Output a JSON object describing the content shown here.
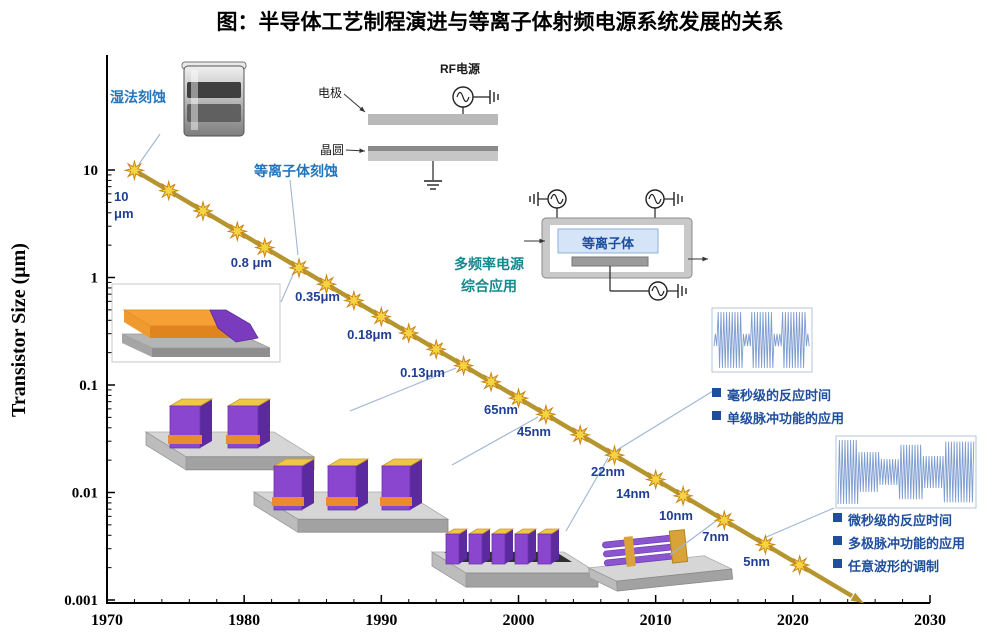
{
  "title": "图：半导体工艺制程演进与等离子体射频电源系统发展的关系",
  "chart_data": {
    "type": "line",
    "title": "半导体工艺制程演进与等离子体射频电源系统发展的关系",
    "xlabel": "",
    "ylabel": "Transistor Size (μm)",
    "x_ticks": [
      "1970",
      "1980",
      "1990",
      "2000",
      "2010",
      "2020",
      "2030"
    ],
    "y_ticks": [
      "10",
      "1",
      "0.1",
      "0.01",
      "0.001"
    ],
    "y_scale": "log",
    "xlim": [
      1970,
      2030
    ],
    "ylim": [
      0.001,
      10
    ],
    "grid": false,
    "legend": "none",
    "series": [
      {
        "name": "transistor-size-roadmap",
        "marker": "star",
        "marker_years": [
          1972,
          1974.5,
          1977,
          1979.5,
          1981.5,
          1984,
          1986,
          1988,
          1990,
          1992,
          1994,
          1996,
          1998,
          2000,
          2002,
          2004.5,
          2007,
          2010,
          2012,
          2015,
          2018,
          2020.5
        ],
        "milestones": [
          {
            "label": "10 μm",
            "year": 1972,
            "size_um": 10
          },
          {
            "label": "0.8 μm",
            "year": 1984,
            "size_um": 0.8
          },
          {
            "label": "0.35μm",
            "year": 1988,
            "size_um": 0.35
          },
          {
            "label": "0.18μm",
            "year": 1992,
            "size_um": 0.18
          },
          {
            "label": "0.13μm",
            "year": 1996,
            "size_um": 0.13
          },
          {
            "label": "65nm",
            "year": 2000,
            "size_um": 0.065
          },
          {
            "label": "45nm",
            "year": 2002,
            "size_um": 0.045
          },
          {
            "label": "22nm",
            "year": 2007,
            "size_um": 0.022
          },
          {
            "label": "14nm",
            "year": 2010,
            "size_um": 0.014
          },
          {
            "label": "10nm",
            "year": 2012,
            "size_um": 0.01
          },
          {
            "label": "7nm",
            "year": 2015,
            "size_um": 0.007
          },
          {
            "label": "5nm",
            "year": 2018,
            "size_um": 0.005
          }
        ]
      }
    ]
  },
  "labels": {
    "wet_etch": "湿法刻蚀",
    "plasma_etch": "等离子体刻蚀",
    "multi_freq_line1": "多频率电源",
    "multi_freq_line2": "综合应用",
    "electrode": "电极",
    "rf_power": "RF电源",
    "wafer": "晶圆",
    "plasma": "等离子体"
  },
  "bullet_groups": {
    "millisecond": [
      "毫秒级的反应时间",
      "单级脉冲功能的应用"
    ],
    "microsecond": [
      "微秒级的反应时间",
      "多极脉冲功能的应用",
      "任意波形的调制"
    ]
  },
  "colors": {
    "line": "#b5952f",
    "star_fill": "#f5d442",
    "star_stroke": "#c8841a",
    "node_label": "#1f3f94",
    "annotation_blue": "#2475bc",
    "annotation_teal": "#15898f",
    "bullet_blue": "#1f4e9c",
    "waveform": "#7d9cd0",
    "connector": "#9fb6d4"
  }
}
